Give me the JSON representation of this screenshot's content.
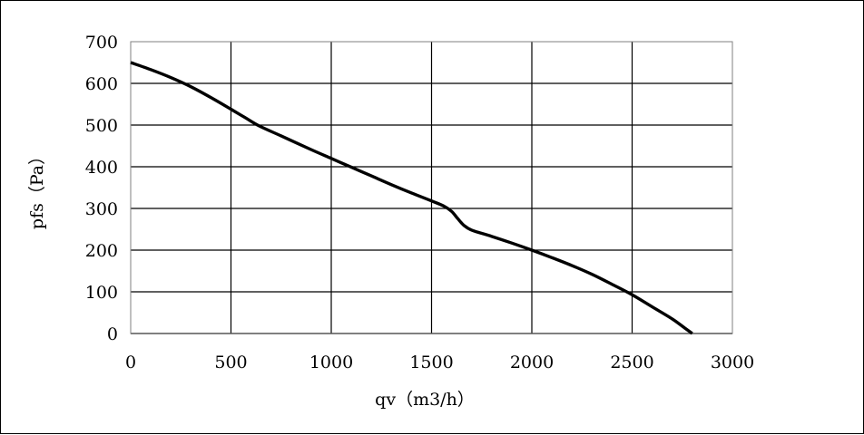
{
  "chart_data": {
    "type": "line",
    "title": "",
    "xlabel": "qv（m3/h）",
    "ylabel": "pfs（Pa）",
    "xlim": [
      0,
      3000
    ],
    "ylim": [
      0,
      700
    ],
    "xticks": [
      0,
      500,
      1000,
      1500,
      2000,
      2500,
      3000
    ],
    "yticks": [
      0,
      100,
      200,
      300,
      400,
      500,
      600,
      700
    ],
    "grid": true,
    "legend": "none",
    "series": [
      {
        "color": "#000000",
        "points": [
          [
            0,
            650
          ],
          [
            100,
            633
          ],
          [
            200,
            614
          ],
          [
            300,
            592
          ],
          [
            400,
            566
          ],
          [
            500,
            538
          ],
          [
            570,
            518
          ],
          [
            640,
            498
          ],
          [
            750,
            474
          ],
          [
            900,
            441
          ],
          [
            1000,
            420
          ],
          [
            1100,
            399
          ],
          [
            1200,
            378
          ],
          [
            1300,
            357
          ],
          [
            1400,
            337
          ],
          [
            1500,
            318
          ],
          [
            1560,
            306
          ],
          [
            1600,
            293
          ],
          [
            1630,
            276
          ],
          [
            1660,
            260
          ],
          [
            1700,
            248
          ],
          [
            1800,
            233
          ],
          [
            1900,
            217
          ],
          [
            2000,
            200
          ],
          [
            2100,
            182
          ],
          [
            2200,
            163
          ],
          [
            2300,
            142
          ],
          [
            2400,
            118
          ],
          [
            2500,
            93
          ],
          [
            2600,
            64
          ],
          [
            2700,
            35
          ],
          [
            2760,
            14
          ],
          [
            2800,
            0
          ]
        ]
      }
    ]
  }
}
